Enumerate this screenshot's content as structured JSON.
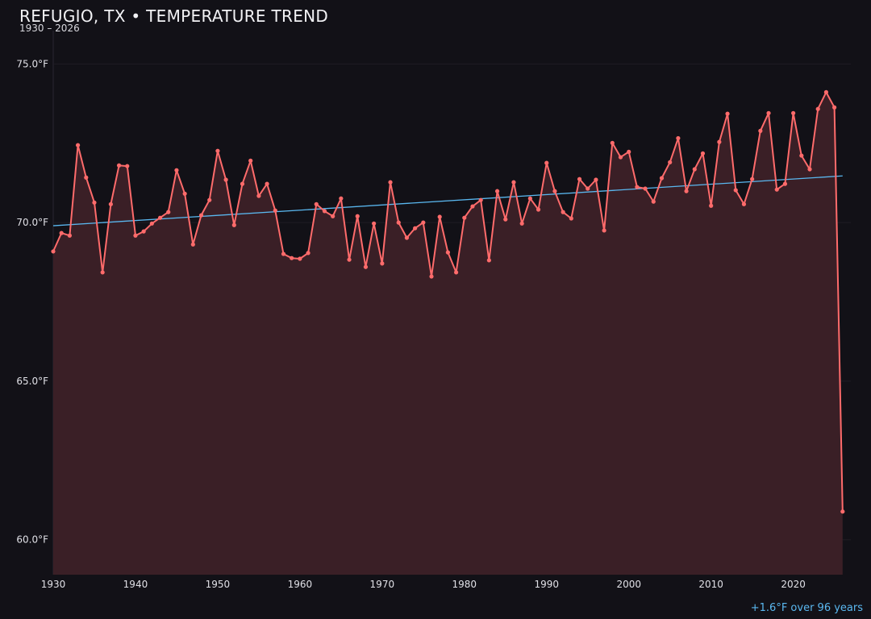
{
  "header": {
    "title": "REFUGIO, TX • TEMPERATURE TREND",
    "subtitle": "1930 – 2026"
  },
  "annotation": "+1.6°F over 96 years",
  "colors": {
    "background": "#121117",
    "series_line": "#ff6b6b",
    "series_fill": "#3a1f26",
    "trend_line": "#5ab8f0",
    "grid": "#1f1d24"
  },
  "chart_data": {
    "type": "area",
    "title": "REFUGIO, TX • TEMPERATURE TREND",
    "subtitle": "1930 – 2026",
    "xlabel": "",
    "ylabel": "",
    "xlim": [
      1930,
      2027
    ],
    "ylim": [
      58.9,
      76.05
    ],
    "grid": true,
    "x_ticks": [
      1930,
      1940,
      1950,
      1960,
      1970,
      1980,
      1990,
      2000,
      2010,
      2020
    ],
    "y_ticks": [
      60,
      65,
      70,
      75
    ],
    "y_tick_labels": [
      "60.0°F",
      "65.0°F",
      "70.0°F",
      "75.0°F"
    ],
    "x": [
      1930,
      1931,
      1932,
      1933,
      1934,
      1935,
      1936,
      1937,
      1938,
      1939,
      1940,
      1941,
      1942,
      1943,
      1944,
      1945,
      1946,
      1947,
      1948,
      1949,
      1950,
      1951,
      1952,
      1953,
      1954,
      1955,
      1956,
      1957,
      1958,
      1959,
      1960,
      1961,
      1962,
      1963,
      1964,
      1965,
      1966,
      1967,
      1968,
      1969,
      1970,
      1971,
      1972,
      1973,
      1974,
      1975,
      1976,
      1977,
      1978,
      1979,
      1980,
      1981,
      1982,
      1983,
      1984,
      1985,
      1986,
      1987,
      1988,
      1989,
      1990,
      1991,
      1992,
      1993,
      1994,
      1995,
      1996,
      1997,
      1998,
      1999,
      2000,
      2001,
      2002,
      2003,
      2004,
      2005,
      2006,
      2007,
      2008,
      2009,
      2010,
      2011,
      2012,
      2013,
      2014,
      2015,
      2016,
      2017,
      2018,
      2019,
      2020,
      2021,
      2022,
      2023,
      2024,
      2025,
      2026
    ],
    "values": [
      69.09,
      69.67,
      69.59,
      72.44,
      71.42,
      70.63,
      68.43,
      70.58,
      71.8,
      71.78,
      69.59,
      69.72,
      69.97,
      70.15,
      70.33,
      71.65,
      70.91,
      69.31,
      70.23,
      70.71,
      72.26,
      71.35,
      69.92,
      71.22,
      71.95,
      70.84,
      71.22,
      70.38,
      69.01,
      68.88,
      68.86,
      69.04,
      70.58,
      70.36,
      70.2,
      70.76,
      68.83,
      70.2,
      68.6,
      69.97,
      68.71,
      71.27,
      70.0,
      69.52,
      69.82,
      70.0,
      68.3,
      70.18,
      69.06,
      68.43,
      70.15,
      70.51,
      70.71,
      68.81,
      70.99,
      70.1,
      71.27,
      69.97,
      70.76,
      70.41,
      71.88,
      70.99,
      70.33,
      70.13,
      71.37,
      71.07,
      71.35,
      69.75,
      72.51,
      72.06,
      72.23,
      71.12,
      71.07,
      70.66,
      71.4,
      71.9,
      72.66,
      70.99,
      71.68,
      72.18,
      70.53,
      72.54,
      73.43,
      71.02,
      70.58,
      71.37,
      72.89,
      73.45,
      71.04,
      71.22,
      73.45,
      72.11,
      71.68,
      73.58,
      74.11,
      73.63,
      60.89
    ],
    "trend": {
      "x": [
        1930,
        2026
      ],
      "y": [
        69.9,
        71.47
      ]
    }
  }
}
